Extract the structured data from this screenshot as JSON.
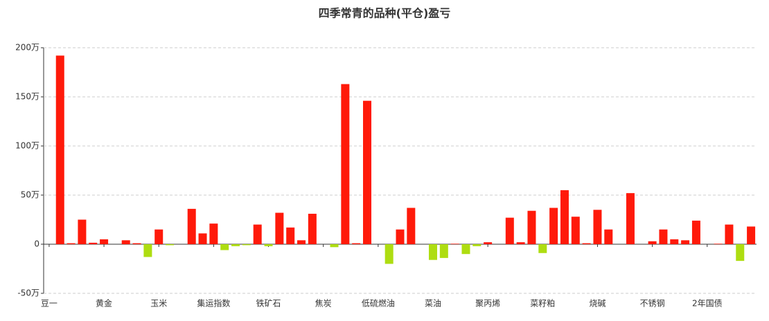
{
  "chart_data": {
    "type": "bar",
    "title": "四季常青的品种(平仓)盈亏",
    "categories": [
      "豆一",
      null,
      null,
      null,
      null,
      "黄金",
      null,
      null,
      null,
      null,
      "玉米",
      null,
      null,
      null,
      null,
      "集运指数",
      null,
      null,
      null,
      null,
      "铁矿石",
      null,
      null,
      null,
      null,
      "焦炭",
      null,
      null,
      null,
      null,
      "低硫燃油",
      null,
      null,
      null,
      null,
      "菜油",
      null,
      null,
      null,
      null,
      "聚丙烯",
      null,
      null,
      null,
      null,
      "菜籽粕",
      null,
      null,
      null,
      null,
      "烧碱",
      null,
      null,
      null,
      null,
      "不锈钢",
      null,
      null,
      null,
      null,
      "2年国债",
      null,
      null,
      null,
      null
    ],
    "values": [
      0,
      192,
      1,
      25,
      1.5,
      5,
      0,
      4,
      1,
      -13,
      15,
      -1,
      0,
      36,
      11,
      21,
      -6,
      -2,
      -1,
      20,
      -2,
      32,
      17,
      4,
      31,
      0,
      -3,
      163,
      1,
      146,
      0,
      -20,
      15,
      37,
      0,
      -16,
      -14,
      0.5,
      -10,
      -2,
      2,
      0,
      27,
      2,
      34,
      -9,
      37,
      55,
      28,
      1,
      35,
      15,
      0,
      52,
      0,
      3,
      15,
      5,
      4,
      24,
      0,
      0.5,
      20,
      -17,
      18
    ],
    "positive_color": "#ff1a0a",
    "negative_color": "#aedd11",
    "ylim": [
      -50,
      200
    ],
    "yticks": [
      {
        "value": -50,
        "label": "-50万"
      },
      {
        "value": 0,
        "label": "0"
      },
      {
        "value": 50,
        "label": "50万"
      },
      {
        "value": 100,
        "label": "100万"
      },
      {
        "value": 150,
        "label": "150万"
      },
      {
        "value": 200,
        "label": "200万"
      }
    ],
    "grid": true
  }
}
